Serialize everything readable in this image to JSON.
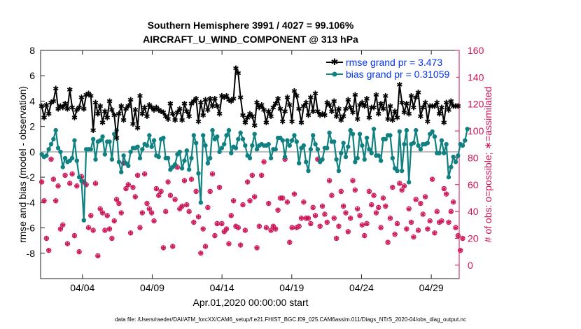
{
  "chart_data": {
    "type": "line",
    "title": "Southern Hemisphere 3991 / 4027 = 99.106%",
    "subtitle": "AIRCRAFT_U_WIND_COMPONENT @ 313 hPa",
    "xlabel": "Apr.01,2020 00:00:00 start",
    "ylabel_left": "rmse and bias (model - observation)",
    "ylabel_right": "# of obs: o=possible; ∗=assimilated",
    "x_tick_labels": [
      "04/04",
      "04/09",
      "04/14",
      "04/19",
      "04/24",
      "04/29"
    ],
    "x_tick_days": [
      4,
      9,
      14,
      19,
      24,
      29
    ],
    "xlim": [
      1.0,
      31.0
    ],
    "ylim_left": [
      -10,
      8
    ],
    "y_ticks_left": [
      -8,
      -6,
      -4,
      -2,
      0,
      2,
      4,
      6,
      8
    ],
    "ylim_right": [
      -10,
      160
    ],
    "y_ticks_right": [
      0,
      20,
      40,
      60,
      80,
      100,
      120,
      140,
      160
    ],
    "grid": false,
    "legend_position": "top-right",
    "colors": {
      "rmse": "#000000",
      "bias": "#118080",
      "obs": "#cc1155",
      "zero_line": "#bbbbbb",
      "right_axis": "#cc1155"
    },
    "series": [
      {
        "name": "rmse grand pr = 3.473",
        "axis": "left",
        "values": [
          3.6,
          2.7,
          3.7,
          3.0,
          3.9,
          4.0,
          5.0,
          3.4,
          3.6,
          3.5,
          3.8,
          3.4,
          4.9,
          3.5,
          2.7,
          3.3,
          3.5,
          4.3,
          3.4,
          4.5,
          4.6,
          4.4,
          1.7,
          3.9,
          3.0,
          3.6,
          2.3,
          3.2,
          2.7,
          4.0,
          3.3,
          2.9,
          1.1,
          3.0,
          3.6,
          2.5,
          3.4,
          3.6,
          4.1,
          2.2,
          3.3,
          1.9,
          4.4,
          3.0,
          3.5,
          2.8,
          3.7,
          3.5,
          3.3,
          3.5,
          3.3,
          3.2,
          3.1,
          2.8,
          2.6,
          3.8,
          3.0,
          2.5,
          3.1,
          3.4,
          2.5,
          3.8,
          3.2,
          2.8,
          3.8,
          4.0,
          4.2,
          2.4,
          3.9,
          2.9,
          4.1,
          3.3,
          4.2,
          3.6,
          4.2,
          3.6,
          3.0,
          4.4,
          4.3,
          4.4,
          4.1,
          4.0,
          4.2,
          6.6,
          6.2,
          4.3,
          2.9,
          2.3,
          2.7,
          3.0,
          2.8,
          2.1,
          3.9,
          3.5,
          3.7,
          3.3,
          2.3,
          3.2,
          2.8,
          3.5,
          3.8,
          4.2,
          3.4,
          2.4,
          3.2,
          4.3,
          3.7,
          2.4,
          4.8,
          4.4,
          3.4,
          2.3,
          3.6,
          3.9,
          2.9,
          4.3,
          3.2,
          4.6,
          3.2,
          2.9,
          3.0,
          2.9,
          3.9,
          3.7,
          3.2,
          4.0,
          2.8,
          3.4,
          2.5,
          2.8,
          3.4,
          4.1,
          3.5,
          3.1,
          4.5,
          2.6,
          3.7,
          3.9,
          3.6,
          4.2,
          2.7,
          3.5,
          3.5,
          4.5,
          3.0,
          3.8,
          3.4,
          4.4,
          2.6,
          3.6,
          2.5,
          3.2,
          2.7,
          5.3,
          3.9,
          3.1,
          3.8,
          3.0,
          4.4,
          3.5,
          4.3,
          4.7,
          2.8,
          3.5,
          3.9,
          2.4,
          3.6,
          3.6,
          3.6,
          3.9,
          3.0,
          3.5,
          2.3,
          3.9,
          3.3,
          4.0,
          3.6,
          3.6,
          3.6
        ],
        "__note_x": "points are evenly spaced in time across the axis range"
      },
      {
        "name": "bias grand pr = 0.31059",
        "axis": "left",
        "values": [
          -0.2,
          -0.4,
          -0.3,
          0.2,
          0.6,
          1.0,
          1.7,
          0.3,
          0.0,
          -1.2,
          -0.5,
          -0.8,
          -0.7,
          -0.5,
          0.9,
          -0.7,
          -2.0,
          -2.3,
          -5.4,
          0.2,
          0.2,
          0.2,
          1.0,
          -0.6,
          0.8,
          0.9,
          1.2,
          -0.2,
          0.8,
          0.8,
          -0.6,
          1.4,
          1.7,
          -0.8,
          -1.6,
          -0.3,
          -0.9,
          -1.1,
          0.0,
          0.3,
          0.3,
          0.4,
          -0.5,
          0.2,
          0.6,
          0.5,
          1.3,
          0.4,
          0.9,
          -0.3,
          -0.4,
          1.0,
          1.1,
          -0.5,
          -0.5,
          -1.4,
          -1.2,
          -1.0,
          -0.2,
          0.0,
          -1.3,
          -0.7,
          0.1,
          -1.4,
          -0.5,
          1.3,
          0.7,
          -1.7,
          -4.0,
          1.3,
          0.5,
          -0.9,
          -0.5,
          1.7,
          1.0,
          1.2,
          0.0,
          0.3,
          0.6,
          1.3,
          1.7,
          -0.1,
          0.4,
          0.3,
          1.0,
          1.5,
          1.0,
          0.5,
          -0.3,
          -0.5,
          0.5,
          1.4,
          0.2,
          0.5,
          0.6,
          0.5,
          0.5,
          0.6,
          -0.5,
          0.2,
          0.2,
          1.1,
          1.1,
          0.9,
          -0.4,
          0.9,
          0.5,
          0.9,
          1.3,
          0.8,
          -0.9,
          0.3,
          0.5,
          -0.8,
          -1.5,
          0.2,
          1.3,
          0.6,
          0.2,
          -0.8,
          -0.6,
          0.3,
          0.3,
          1.5,
          0.8,
          0.8,
          -0.6,
          -1.5,
          -0.1,
          0.7,
          -0.4,
          0.4,
          1.7,
          1.4,
          -0.8,
          -0.5,
          1.4,
          0.5,
          -0.6,
          1.1,
          0.2,
          -0.1,
          1.8,
          -0.3,
          -0.3,
          -0.7,
          1.0,
          1.0,
          1.3,
          1.3,
          -0.5,
          -1.3,
          -1.5,
          1.6,
          -1.5,
          0.6,
          1.7,
          -2.4,
          0.6,
          0.7,
          1.7,
          0.5,
          0.2,
          0.6,
          0.6,
          0.7,
          1.4,
          1.6,
          1.2,
          -0.1,
          -0.1,
          0.9,
          -0.1,
          0.6,
          -2.0,
          -1.2,
          -0.4,
          -0.8,
          -0.3,
          0.6,
          0.5,
          0.9,
          1.8
        ]
      },
      {
        "name": "",
        "axis": "right",
        "kind": "obs_assimilated_markers",
        "values": [
          62,
          48,
          20,
          11,
          79,
          64,
          48,
          59,
          27,
          30,
          67,
          16,
          61,
          68,
          22,
          59,
          10,
          66,
          62,
          60,
          28,
          37,
          26,
          61,
          7,
          42,
          39,
          26,
          37,
          27,
          20,
          33,
          49,
          46,
          39,
          76,
          57,
          60,
          24,
          58,
          51,
          67,
          28,
          39,
          68,
          46,
          42,
          39,
          33,
          57,
          52,
          55,
          13,
          40,
          62,
          52,
          14,
          49,
          73,
          42,
          44,
          63,
          45,
          40,
          64,
          32,
          55,
          36,
          9,
          27,
          14,
          43,
          55,
          68,
          22,
          31,
          58,
          31,
          25,
          27,
          16,
          37,
          48,
          29,
          28,
          15,
          45,
          26,
          62,
          48,
          67,
          51,
          13,
          29,
          67,
          77,
          28,
          46,
          26,
          29,
          27,
          41,
          50,
          50,
          79,
          47,
          17,
          28,
          53,
          28,
          29,
          35,
          47,
          35,
          35,
          31,
          43,
          37,
          79,
          29,
          44,
          38,
          32,
          63,
          52,
          35,
          20,
          29,
          55,
          44,
          39,
          25,
          35,
          63,
          56,
          42,
          37,
          30,
          22,
          31,
          55,
          45,
          52,
          39,
          43,
          28,
          50,
          44,
          17,
          35,
          58,
          23,
          31,
          61,
          56,
          59,
          27,
          42,
          32,
          21,
          49,
          26,
          46,
          38,
          51,
          27,
          33,
          64,
          24,
          40,
          32,
          33,
          57,
          53,
          32,
          40,
          47,
          28,
          22,
          11,
          20
        ]
      }
    ],
    "footer": "data file: /Users/raeder/DAI/ATM_forcXX/CAM6_setup/f.e21.FHIST_BGC.f09_025.CAM6assim.011/Diags_NTrS_2020-04/obs_diag_output.nc"
  }
}
